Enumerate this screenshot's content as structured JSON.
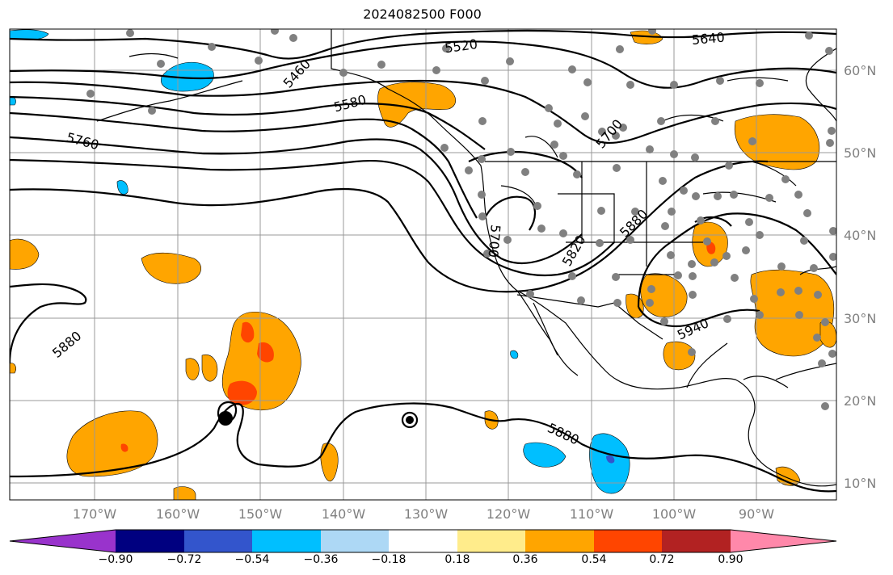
{
  "title": "2024082500 F000",
  "map": {
    "lat_labels": [
      "60°N",
      "50°N",
      "40°N",
      "30°N",
      "20°N",
      "10°N"
    ],
    "lon_labels": [
      "170°W",
      "160°W",
      "150°W",
      "140°W",
      "130°W",
      "120°W",
      "110°W",
      "100°W",
      "90°W"
    ],
    "contour_labels": [
      "5520",
      "5640",
      "5460",
      "5580",
      "5700",
      "5760",
      "5700",
      "5820",
      "5880",
      "5880",
      "5940",
      "5880"
    ],
    "contour_color": "#000000",
    "grid_color": "#999999",
    "dot_color": "#808080"
  },
  "colorbar": {
    "tick_labels": [
      "−0.90",
      "−0.72",
      "−0.54",
      "−0.36",
      "−0.18",
      "0.18",
      "0.36",
      "0.54",
      "0.72",
      "0.90"
    ],
    "colors": [
      "#9933cc",
      "#000080",
      "#3355cc",
      "#00bfff",
      "#add8f5",
      "#ffffff",
      "#ffec8b",
      "#ffa500",
      "#ff4500",
      "#b22222",
      "#ff88aa"
    ]
  }
}
